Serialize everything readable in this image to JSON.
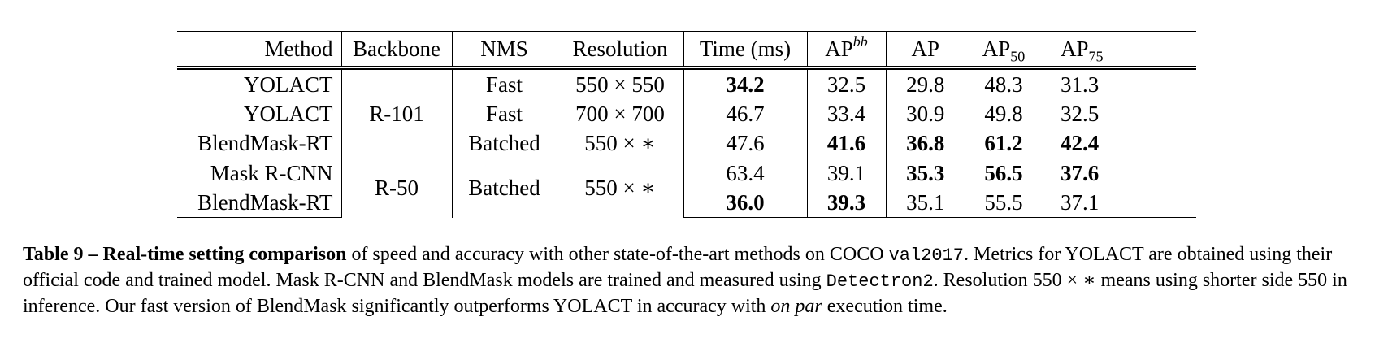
{
  "table": {
    "headers": {
      "method": "Method",
      "backbone": "Backbone",
      "nms": "NMS",
      "resolution": "Resolution",
      "time": "Time (ms)",
      "apbb_base": "AP",
      "apbb_sup": "bb",
      "ap": "AP",
      "ap50_base": "AP",
      "ap50_sub": "50",
      "ap75_base": "AP",
      "ap75_sub": "75"
    },
    "group1": {
      "backbone": "R-101",
      "rows": [
        {
          "method": "YOLACT",
          "nms": "Fast",
          "resolution": "550 × 550",
          "time": "34.2",
          "apbb": "32.5",
          "ap": "29.8",
          "ap50": "48.3",
          "ap75": "31.3"
        },
        {
          "method": "YOLACT",
          "nms": "Fast",
          "resolution": "700 × 700",
          "time": "46.7",
          "apbb": "33.4",
          "ap": "30.9",
          "ap50": "49.8",
          "ap75": "32.5"
        },
        {
          "method": "BlendMask-RT",
          "nms": "Batched",
          "resolution": "550 × ∗",
          "time": "47.6",
          "apbb": "41.6",
          "ap": "36.8",
          "ap50": "61.2",
          "ap75": "42.4"
        }
      ]
    },
    "group2": {
      "backbone": "R-50",
      "nms": "Batched",
      "resolution": "550 × ∗",
      "rows": [
        {
          "method": "Mask R-CNN",
          "time": "63.4",
          "apbb": "39.1",
          "ap": "35.3",
          "ap50": "56.5",
          "ap75": "37.6"
        },
        {
          "method": "BlendMask-RT",
          "time": "36.0",
          "apbb": "39.3",
          "ap": "35.1",
          "ap50": "55.5",
          "ap75": "37.1"
        }
      ]
    }
  },
  "caption": {
    "label": "Table 9 –",
    "title": "Real-time setting comparison",
    "t1": " of speed and accuracy with other state-of-the-art methods on COCO ",
    "code1": "val2017",
    "t2": ". Metrics for YOLACT are obtained using their official code and trained model. Mask R-CNN and BlendMask models are trained and measured using ",
    "code2": "Detectron2",
    "t3": ". Resolution 550 × ∗ means using shorter side 550 in inference. Our fast version of BlendMask significantly outperforms YOLACT in accuracy with ",
    "em": "on par",
    "t4": " execution time."
  }
}
